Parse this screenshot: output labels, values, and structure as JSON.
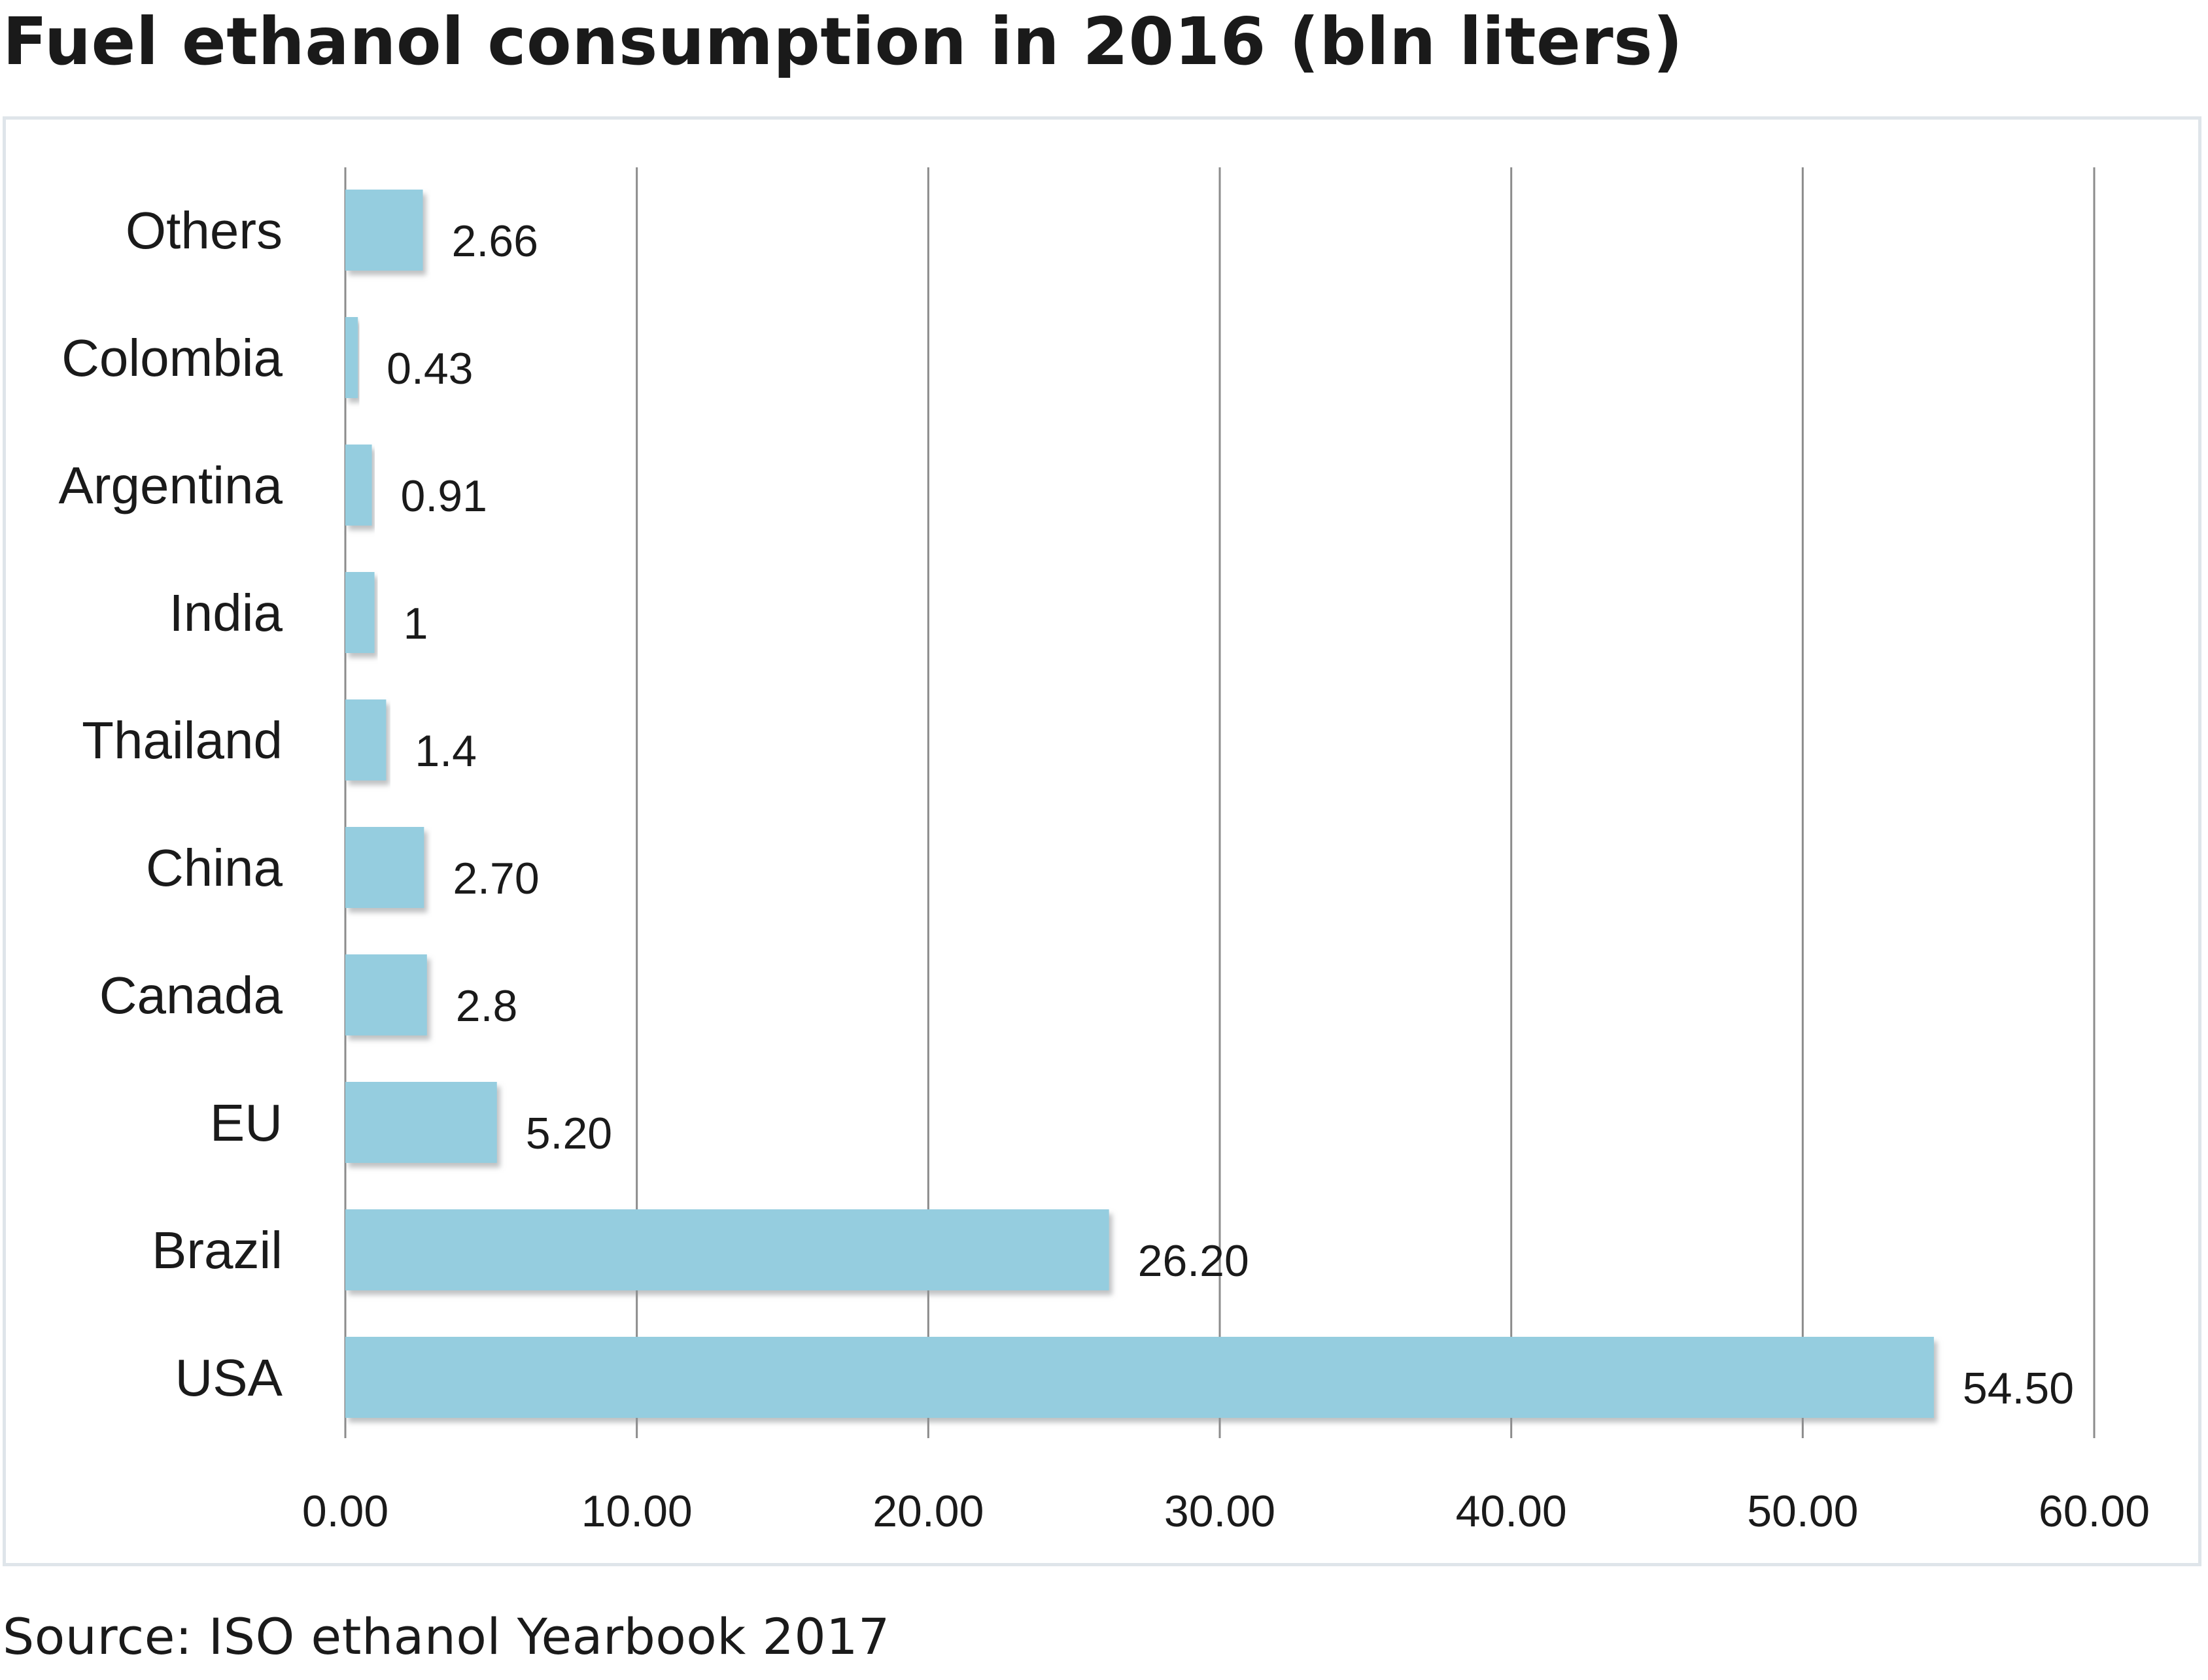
{
  "chart_data": {
    "type": "bar",
    "orientation": "horizontal",
    "title": "Fuel ethanol consumption in 2016 (bln liters)",
    "xlabel": "",
    "ylabel": "",
    "categories": [
      "Others",
      "Colombia",
      "Argentina",
      "India",
      "Thailand",
      "China",
      "Canada",
      "EU",
      "Brazil",
      "USA"
    ],
    "values": [
      2.66,
      0.43,
      0.91,
      1,
      1.4,
      2.7,
      2.8,
      5.2,
      26.2,
      54.5
    ],
    "value_labels": [
      "2.66",
      "0.43",
      "0.91",
      "1",
      "1.4",
      "2.70",
      "2.8",
      "5.20",
      "26.20",
      "54.50"
    ],
    "xlim": [
      0,
      60
    ],
    "xticks": [
      0,
      10,
      20,
      30,
      40,
      50,
      60
    ],
    "xtick_labels": [
      "0.00",
      "10.00",
      "20.00",
      "30.00",
      "40.00",
      "50.00",
      "60.00"
    ],
    "grid": "vertical",
    "legend": "none",
    "colors": {
      "bar": "#95cddf",
      "bar_shadow": "#c9cccf",
      "grid": "#8c8c8c",
      "frame": "#dfe5ea",
      "text": "#1a1a1a"
    }
  },
  "footer": {
    "source": "Source: ISO ethanol Yearbook 2017"
  }
}
